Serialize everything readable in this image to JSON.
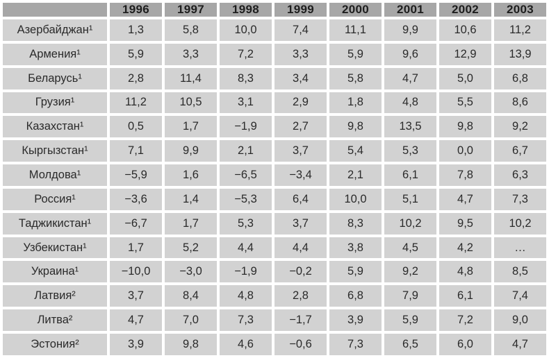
{
  "table": {
    "corner_label": "",
    "years": [
      "1996",
      "1997",
      "1998",
      "1999",
      "2000",
      "2001",
      "2002",
      "2003"
    ],
    "rows": [
      {
        "country": "Азербайджан¹",
        "values": [
          "1,3",
          "5,8",
          "10,0",
          "7,4",
          "11,1",
          "9,9",
          "10,6",
          "11,2"
        ]
      },
      {
        "country": "Армения¹",
        "values": [
          "5,9",
          "3,3",
          "7,2",
          "3,3",
          "5,9",
          "9,6",
          "12,9",
          "13,9"
        ]
      },
      {
        "country": "Беларусь¹",
        "values": [
          "2,8",
          "11,4",
          "8,3",
          "3,4",
          "5,8",
          "4,7",
          "5,0",
          "6,8"
        ]
      },
      {
        "country": "Грузия¹",
        "values": [
          "11,2",
          "10,5",
          "3,1",
          "2,9",
          "1,8",
          "4,8",
          "5,5",
          "8,6"
        ]
      },
      {
        "country": "Казахстан¹",
        "values": [
          "0,5",
          "1,7",
          "−1,9",
          "2,7",
          "9,8",
          "13,5",
          "9,8",
          "9,2"
        ]
      },
      {
        "country": "Кыргызстан¹",
        "values": [
          "7,1",
          "9,9",
          "2,1",
          "3,7",
          "5,4",
          "5,3",
          "0,0",
          "6,7"
        ]
      },
      {
        "country": "Молдова¹",
        "values": [
          "−5,9",
          "1,6",
          "−6,5",
          "−3,4",
          "2,1",
          "6,1",
          "7,8",
          "6,3"
        ]
      },
      {
        "country": "Россия¹",
        "values": [
          "−3,6",
          "1,4",
          "−5,3",
          "6,4",
          "10,0",
          "5,1",
          "4,7",
          "7,3"
        ]
      },
      {
        "country": "Таджикистан¹",
        "values": [
          "−6,7",
          "1,7",
          "5,3",
          "3,7",
          "8,3",
          "10,2",
          "9,5",
          "10,2"
        ]
      },
      {
        "country": "Узбекистан¹",
        "values": [
          "1,7",
          "5,2",
          "4,4",
          "4,4",
          "3,8",
          "4,5",
          "4,2",
          "…"
        ]
      },
      {
        "country": "Украина¹",
        "values": [
          "−10,0",
          "−3,0",
          "−1,9",
          "−0,2",
          "5,9",
          "9,2",
          "4,8",
          "8,5"
        ]
      },
      {
        "country": "Латвия²",
        "values": [
          "3,7",
          "8,4",
          "4,8",
          "2,8",
          "6,8",
          "7,9",
          "6,1",
          "7,4"
        ]
      },
      {
        "country": "Литва²",
        "values": [
          "4,7",
          "7,0",
          "7,3",
          "−1,7",
          "3,9",
          "5,9",
          "7,2",
          "9,0"
        ]
      },
      {
        "country": "Эстония²",
        "values": [
          "3,9",
          "9,8",
          "4,6",
          "−0,6",
          "7,3",
          "6,5",
          "6,0",
          "4,7"
        ]
      }
    ]
  },
  "colors": {
    "header_bg": "#a7a7a7",
    "cell_bg": "#d2d2d2",
    "text": "#2a2a2a",
    "gutter": "#ffffff"
  },
  "chart_data": {
    "type": "table",
    "title": "",
    "categories": [
      "1996",
      "1997",
      "1998",
      "1999",
      "2000",
      "2001",
      "2002",
      "2003"
    ],
    "series": [
      {
        "name": "Азербайджан",
        "footnote": 1,
        "values": [
          1.3,
          5.8,
          10.0,
          7.4,
          11.1,
          9.9,
          10.6,
          11.2
        ]
      },
      {
        "name": "Армения",
        "footnote": 1,
        "values": [
          5.9,
          3.3,
          7.2,
          3.3,
          5.9,
          9.6,
          12.9,
          13.9
        ]
      },
      {
        "name": "Беларусь",
        "footnote": 1,
        "values": [
          2.8,
          11.4,
          8.3,
          3.4,
          5.8,
          4.7,
          5.0,
          6.8
        ]
      },
      {
        "name": "Грузия",
        "footnote": 1,
        "values": [
          11.2,
          10.5,
          3.1,
          2.9,
          1.8,
          4.8,
          5.5,
          8.6
        ]
      },
      {
        "name": "Казахстан",
        "footnote": 1,
        "values": [
          0.5,
          1.7,
          -1.9,
          2.7,
          9.8,
          13.5,
          9.8,
          9.2
        ]
      },
      {
        "name": "Кыргызстан",
        "footnote": 1,
        "values": [
          7.1,
          9.9,
          2.1,
          3.7,
          5.4,
          5.3,
          0.0,
          6.7
        ]
      },
      {
        "name": "Молдова",
        "footnote": 1,
        "values": [
          -5.9,
          1.6,
          -6.5,
          -3.4,
          2.1,
          6.1,
          7.8,
          6.3
        ]
      },
      {
        "name": "Россия",
        "footnote": 1,
        "values": [
          -3.6,
          1.4,
          -5.3,
          6.4,
          10.0,
          5.1,
          4.7,
          7.3
        ]
      },
      {
        "name": "Таджикистан",
        "footnote": 1,
        "values": [
          -6.7,
          1.7,
          5.3,
          3.7,
          8.3,
          10.2,
          9.5,
          10.2
        ]
      },
      {
        "name": "Узбекистан",
        "footnote": 1,
        "values": [
          1.7,
          5.2,
          4.4,
          4.4,
          3.8,
          4.5,
          4.2,
          null
        ]
      },
      {
        "name": "Украина",
        "footnote": 1,
        "values": [
          -10.0,
          -3.0,
          -1.9,
          -0.2,
          5.9,
          9.2,
          4.8,
          8.5
        ]
      },
      {
        "name": "Латвия",
        "footnote": 2,
        "values": [
          3.7,
          8.4,
          4.8,
          2.8,
          6.8,
          7.9,
          6.1,
          7.4
        ]
      },
      {
        "name": "Литва",
        "footnote": 2,
        "values": [
          4.7,
          7.0,
          7.3,
          -1.7,
          3.9,
          5.9,
          7.2,
          9.0
        ]
      },
      {
        "name": "Эстония",
        "footnote": 2,
        "values": [
          3.9,
          9.8,
          4.6,
          -0.6,
          7.3,
          6.5,
          6.0,
          4.7
        ]
      }
    ]
  }
}
